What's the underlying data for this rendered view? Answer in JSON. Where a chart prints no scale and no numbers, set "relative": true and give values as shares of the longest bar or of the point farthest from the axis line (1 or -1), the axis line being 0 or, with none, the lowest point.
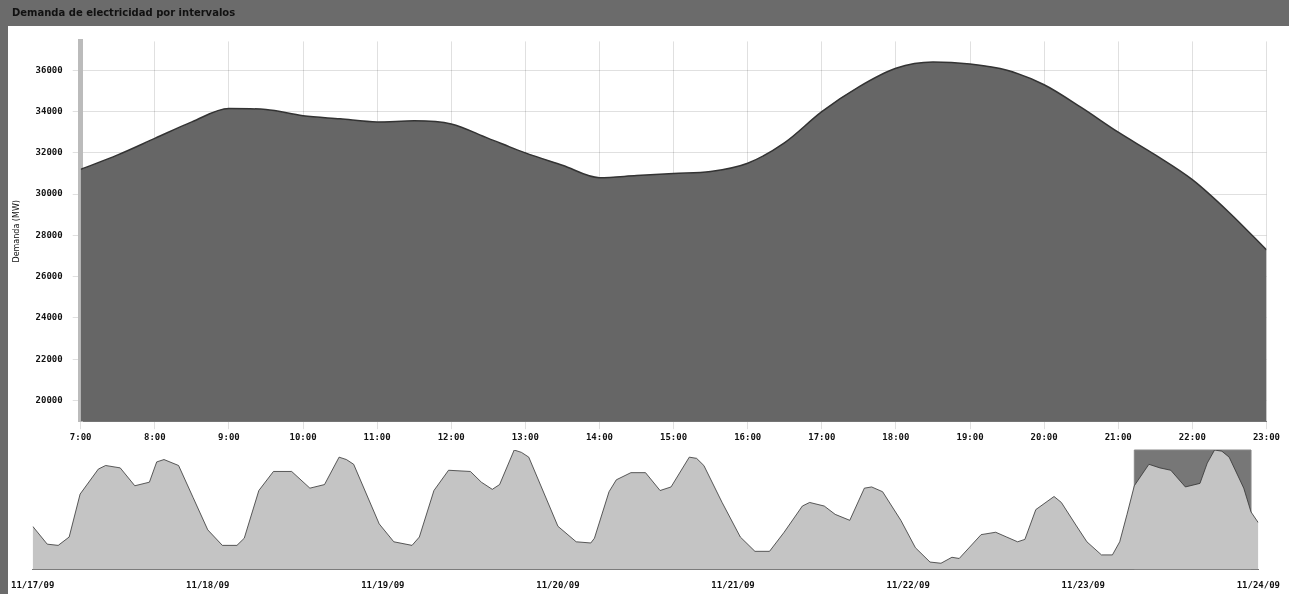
{
  "chart_data": [
    {
      "type": "area",
      "title": "Demanda de electricidad por intervalos",
      "ylabel": "Demanda (MW)",
      "x": [
        7,
        7.5,
        8,
        8.5,
        9,
        9.5,
        10,
        10.5,
        11,
        11.5,
        12,
        12.5,
        13,
        13.5,
        14,
        14.5,
        15,
        15.5,
        16,
        16.5,
        17,
        17.5,
        18,
        18.5,
        19,
        19.5,
        20,
        20.5,
        21,
        21.5,
        22,
        22.5,
        23
      ],
      "series": [
        {
          "color": "#666666",
          "values": [
            31200,
            31900,
            32700,
            33500,
            34150,
            34100,
            33800,
            33650,
            33500,
            33550,
            33400,
            32700,
            32000,
            31400,
            30800,
            30900,
            31000,
            31100,
            31500,
            32500,
            34000,
            35200,
            36100,
            36400,
            36300,
            36000,
            35300,
            34200,
            33000,
            31900,
            30700,
            29100,
            27300
          ]
        }
      ],
      "xlim": [
        7,
        23
      ],
      "ylim": [
        19000,
        37400
      ],
      "xticks": [
        {
          "value": 7,
          "label": "7:00"
        },
        {
          "value": 8,
          "label": "8:00"
        },
        {
          "value": 9,
          "label": "9:00"
        },
        {
          "value": 10,
          "label": "10:00"
        },
        {
          "value": 11,
          "label": "11:00"
        },
        {
          "value": 12,
          "label": "12:00"
        },
        {
          "value": 13,
          "label": "13:00"
        },
        {
          "value": 14,
          "label": "14:00"
        },
        {
          "value": 15,
          "label": "15:00"
        },
        {
          "value": 16,
          "label": "16:00"
        },
        {
          "value": 17,
          "label": "17:00"
        },
        {
          "value": 18,
          "label": "18:00"
        },
        {
          "value": 19,
          "label": "19:00"
        },
        {
          "value": 20,
          "label": "20:00"
        },
        {
          "value": 21,
          "label": "21:00"
        },
        {
          "value": 22,
          "label": "22:00"
        },
        {
          "value": 23,
          "label": "23:00"
        }
      ],
      "yticks": [
        20000,
        22000,
        24000,
        26000,
        28000,
        30000,
        32000,
        34000,
        36000
      ],
      "grid": true
    },
    {
      "type": "area",
      "relative": true,
      "x": [
        "--11-17T00:00",
        "--11-17T02:00",
        "--11-17T03:30",
        "--11-17T05:00",
        "--11-17T06:30",
        "--11-17T09:00",
        "--11-17T10:00",
        "--11-17T12:00",
        "--11-17T14:00",
        "--11-17T16:00",
        "--11-17T17:00",
        "--11-17T18:00",
        "--11-17T20:00",
        "--11-17T22:00",
        "--11-18T00:00",
        "--11-18T02:00",
        "--11-18T04:00",
        "--11-18T05:00",
        "--11-18T07:00",
        "--11-18T09:00",
        "--11-18T11:30",
        "--11-18T14:00",
        "--11-18T16:00",
        "--11-18T18:00",
        "--11-18T19:00",
        "--11-18T20:00",
        "--11-18T23:30",
        "--11-19T01:30",
        "--11-19T04:00",
        "--11-19T05:00",
        "--11-19T07:00",
        "--11-19T09:00",
        "--11-19T12:00",
        "--11-19T13:30",
        "--11-19T15:00",
        "--11-19T16:00",
        "--11-19T18:00",
        "--11-19T19:00",
        "--11-19T20:00",
        "--11-20T00:00",
        "--11-20T02:30",
        "--11-20T04:30",
        "--11-20T05:00",
        "--11-20T07:00",
        "--11-20T08:00",
        "--11-20T10:00",
        "--11-20T12:00",
        "--11-20T14:00",
        "--11-20T15:30",
        "--11-20T18:00",
        "--11-20T19:00",
        "--11-20T20:00",
        "--11-20T22:30",
        "--11-21T01:00",
        "--11-21T03:00",
        "--11-21T05:00",
        "--11-21T07:00",
        "--11-21T09:30",
        "--11-21T10:30",
        "--11-21T12:30",
        "--11-21T14:00",
        "--11-21T16:00",
        "--11-21T18:00",
        "--11-21T19:00",
        "--11-21T20:30",
        "--11-21T23:00",
        "--11-22T01:00",
        "--11-22T03:00",
        "--11-22T04:30",
        "--11-22T06:00",
        "--11-22T07:00",
        "--11-22T10:00",
        "--11-22T12:00",
        "--11-22T13:30",
        "--11-22T15:00",
        "--11-22T16:00",
        "--11-22T17:30",
        "--11-22T20:00",
        "--11-22T21:00",
        "--11-22T23:00",
        "--11-23T00:30",
        "--11-23T02:30",
        "--11-23T04:00",
        "--11-23T05:00",
        "--11-23T06:00",
        "--11-23T07:00",
        "--11-23T09:00",
        "--11-23T10:30",
        "--11-23T12:00",
        "--11-23T14:00",
        "--11-23T16:00",
        "--11-23T17:00",
        "--11-23T18:00",
        "--11-23T19:00",
        "--11-23T20:00",
        "--11-23T22:00",
        "--11-23T23:00",
        "--11-24T00:00"
      ],
      "series": [
        {
          "color": "#c4c4c4",
          "values": [
            0.36,
            0.21,
            0.2,
            0.27,
            0.63,
            0.84,
            0.87,
            0.85,
            0.7,
            0.73,
            0.9,
            0.92,
            0.87,
            0.6,
            0.33,
            0.2,
            0.2,
            0.26,
            0.66,
            0.82,
            0.82,
            0.68,
            0.71,
            0.94,
            0.92,
            0.88,
            0.38,
            0.23,
            0.2,
            0.27,
            0.66,
            0.83,
            0.82,
            0.73,
            0.67,
            0.71,
            1,
            0.98,
            0.94,
            0.36,
            0.23,
            0.22,
            0.26,
            0.65,
            0.75,
            0.81,
            0.81,
            0.66,
            0.69,
            0.94,
            0.93,
            0.87,
            0.56,
            0.27,
            0.15,
            0.15,
            0.31,
            0.53,
            0.56,
            0.53,
            0.46,
            0.41,
            0.68,
            0.69,
            0.65,
            0.41,
            0.18,
            0.06,
            0.05,
            0.1,
            0.09,
            0.29,
            0.31,
            0.27,
            0.23,
            0.25,
            0.5,
            0.61,
            0.56,
            0.37,
            0.23,
            0.12,
            0.12,
            0.23,
            0.46,
            0.7,
            0.88,
            0.85,
            0.83,
            0.69,
            0.72,
            0.89,
            1,
            0.99,
            0.94,
            0.68,
            0.48,
            0.39
          ]
        }
      ],
      "xlim": [
        "--11-17",
        "--11-24"
      ],
      "xticks": [
        {
          "value": "--11-17",
          "label": "11/17/09"
        },
        {
          "value": "--11-18",
          "label": "11/18/09"
        },
        {
          "value": "--11-19",
          "label": "11/19/09"
        },
        {
          "value": "--11-20",
          "label": "11/20/09"
        },
        {
          "value": "--11-21",
          "label": "11/21/09"
        },
        {
          "value": "--11-22",
          "label": "11/22/09"
        },
        {
          "value": "--11-23",
          "label": "11/23/09"
        },
        {
          "value": "--11-24",
          "label": "11/24/09"
        }
      ],
      "bands": [
        {
          "axis": "x",
          "from": "--11-23T07:00",
          "to": "--11-23T23:00",
          "color": "#555555"
        }
      ]
    }
  ]
}
